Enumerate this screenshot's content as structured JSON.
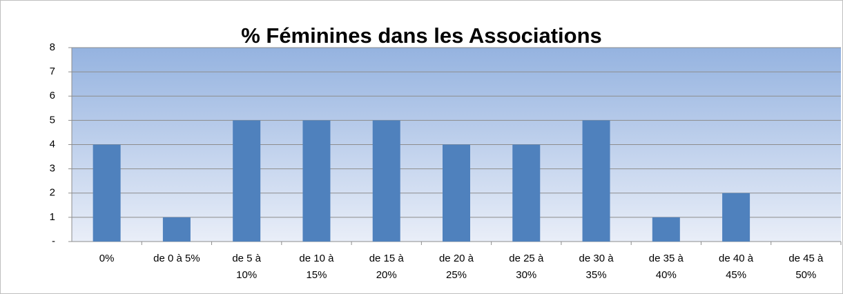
{
  "chart_data": {
    "type": "bar",
    "title": "% Féminines dans les Associations",
    "categories": [
      "0%",
      "de 0 à 5%",
      "de 5 à\n10%",
      "de 10 à\n15%",
      "de 15 à\n20%",
      "de 20 à\n25%",
      "de 25 à\n30%",
      "de 30 à\n35%",
      "de 35 à\n40%",
      "de 40 à\n45%",
      "de 45 à\n50%"
    ],
    "values": [
      4,
      1,
      5,
      5,
      5,
      4,
      4,
      5,
      1,
      2,
      0
    ],
    "color": "#4f81bd",
    "ylim": [
      0,
      8
    ],
    "yticks": [
      {
        "value": 0,
        "label": "-"
      },
      1,
      2,
      3,
      4,
      5,
      6,
      7,
      8
    ],
    "grid": true
  }
}
